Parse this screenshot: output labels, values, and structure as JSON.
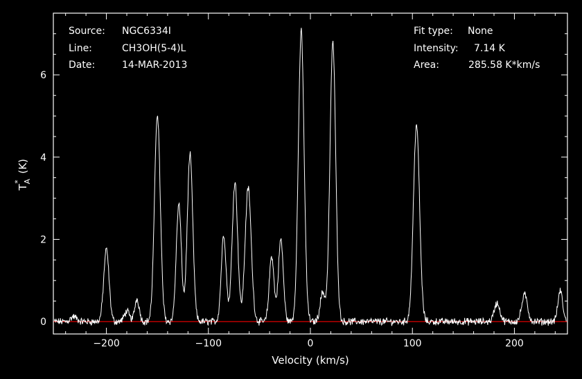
{
  "chart_data": {
    "type": "line",
    "xlabel": "Velocity (km/s)",
    "ylabel": "T*A (K)",
    "xlim": [
      -252,
      252
    ],
    "ylim": [
      -0.3,
      7.5
    ],
    "xticks": [
      -200,
      -100,
      0,
      100,
      200
    ],
    "yticks": [
      0,
      2,
      4,
      6
    ],
    "colors": {
      "background": "#000000",
      "spectrum": "#ffffff",
      "baseline": "#cc0000",
      "frame": "#ffffff"
    },
    "baseline_value": 0,
    "peaks": [
      {
        "x": -232,
        "height": 0.12,
        "width": 3
      },
      {
        "x": -200,
        "height": 1.75,
        "width": 2.6
      },
      {
        "x": -180,
        "height": 0.25,
        "width": 2.5
      },
      {
        "x": -170,
        "height": 0.55,
        "width": 2.2
      },
      {
        "x": -150,
        "height": 5.05,
        "width": 2.8
      },
      {
        "x": -129,
        "height": 2.85,
        "width": 2.5
      },
      {
        "x": -118,
        "height": 4.05,
        "width": 2.7
      },
      {
        "x": -85,
        "height": 2.1,
        "width": 2.4
      },
      {
        "x": -74,
        "height": 3.4,
        "width": 2.7
      },
      {
        "x": -61,
        "height": 3.25,
        "width": 3.0
      },
      {
        "x": -38,
        "height": 1.6,
        "width": 2.3
      },
      {
        "x": -29,
        "height": 2.0,
        "width": 2.4
      },
      {
        "x": -9,
        "height": 7.05,
        "width": 2.8
      },
      {
        "x": 12,
        "height": 0.7,
        "width": 2.5
      },
      {
        "x": 22,
        "height": 6.8,
        "width": 2.8
      },
      {
        "x": 104,
        "height": 4.8,
        "width": 3.0
      },
      {
        "x": 183,
        "height": 0.45,
        "width": 2.8
      },
      {
        "x": 210,
        "height": 0.65,
        "width": 2.8
      },
      {
        "x": 245,
        "height": 0.75,
        "width": 2.3
      }
    ],
    "noise_amplitude": 0.07
  },
  "header": {
    "source_key": "Source:",
    "source_val": "NGC6334I",
    "line_key": "Line:",
    "line_val": "CH3OH(5-4)L",
    "date_key": "Date:",
    "date_val": "14-MAR-2013",
    "fit_key": "Fit type:",
    "fit_val": "None",
    "intensity_key": "Intensity:",
    "intensity_val": "7.14 K",
    "area_key": "Area:",
    "area_val": "285.58 K*km/s"
  },
  "axis": {
    "xtick_labels": [
      "−200",
      "−100",
      "0",
      "100",
      "200"
    ],
    "ytick_labels": [
      "0",
      "2",
      "4",
      "6"
    ]
  }
}
